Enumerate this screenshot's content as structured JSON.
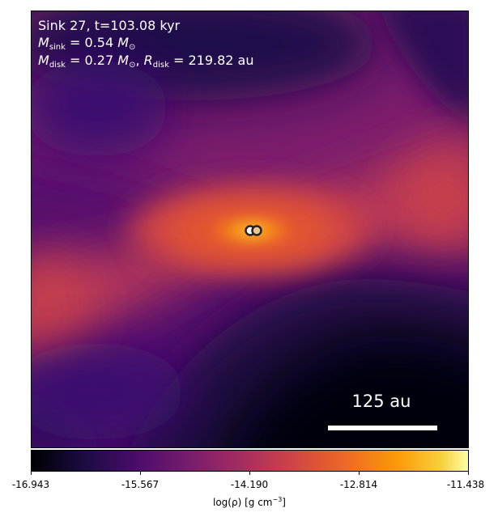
{
  "annotation": {
    "line1": "Sink 27, t=103.08 kyr",
    "msink_label": "M",
    "msink_sub": "sink",
    "msink_value": " = 0.54 ",
    "msun_symbol": "M",
    "msun_sub": "⊙",
    "mdisk_label": "M",
    "mdisk_sub": "disk",
    "mdisk_value": " = 0.27 ",
    "rdisk_sep": ", ",
    "rdisk_label": "R",
    "rdisk_sub": "disk",
    "rdisk_value": " = 219.82 au"
  },
  "scale_bar": {
    "label": "125 au"
  },
  "colorbar": {
    "colormap": "inferno",
    "ticks": [
      "-16.943",
      "-15.567",
      "-14.190",
      "-12.814",
      "-11.438"
    ],
    "label_prefix": "log(ρ) [g cm",
    "label_exp": "−3",
    "label_suffix": "]"
  },
  "sinks": {
    "count": 2,
    "fill_colors": [
      "#ffffff",
      "#e8c890"
    ],
    "edge_color": "#222222"
  }
}
